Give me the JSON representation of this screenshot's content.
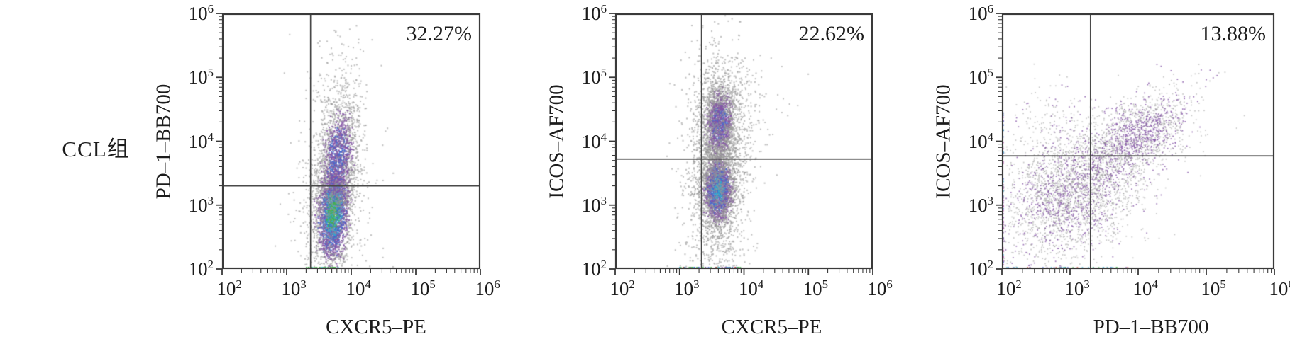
{
  "figure": {
    "row_label": "CCL组",
    "background": "#ffffff",
    "axis_color": "#3a3a3a",
    "gate_color": "#4a4a4a",
    "text_color": "#1c1c1c"
  },
  "palette": {
    "gray": "#969696",
    "purple": "#8455a6",
    "blue": "#4568cd",
    "cyan": "#35aacd",
    "green": "#46b14c",
    "magenta": "#bb50b4",
    "red": "#c03a31"
  },
  "chart_data": [
    {
      "type": "scatter",
      "kind": "flow-cytometry-dot-plot",
      "xlabel": "CXCR5–PE",
      "ylabel": "PD–1–BB700",
      "annotation": "32.27%",
      "annotation_position": "upper-right",
      "scale": "log-log",
      "xlim": [
        100,
        1000000
      ],
      "ylim": [
        100,
        1000000
      ],
      "x_tick_exponents": [
        2,
        3,
        4,
        5,
        6
      ],
      "y_tick_exponents": [
        2,
        3,
        4,
        5,
        6
      ],
      "gate": {
        "x_log10": 3.37,
        "y_log10": 3.3
      },
      "clusters": [
        {
          "n": 3000,
          "cx": 3.72,
          "cy": 2.88,
          "sx": 0.13,
          "sy": 0.4,
          "rho": 0.15,
          "stops": [
            [
              0.4,
              [
                "green",
                "green",
                "cyan"
              ]
            ],
            [
              0.75,
              [
                "cyan",
                "green",
                "blue"
              ]
            ],
            [
              1.1,
              [
                "blue",
                "cyan",
                "purple"
              ]
            ],
            [
              1.55,
              [
                "purple",
                "purple",
                "blue"
              ]
            ],
            [
              2.1,
              [
                "purple",
                "gray"
              ]
            ],
            [
              99,
              [
                "gray"
              ]
            ]
          ]
        },
        {
          "n": 1600,
          "cx": 3.8,
          "cy": 3.78,
          "sx": 0.16,
          "sy": 0.45,
          "rho": 0.25,
          "stops": [
            [
              0.5,
              [
                "blue",
                "purple"
              ]
            ],
            [
              0.95,
              [
                "purple",
                "purple",
                "blue"
              ]
            ],
            [
              1.5,
              [
                "purple",
                "gray"
              ]
            ],
            [
              99,
              [
                "gray"
              ]
            ]
          ]
        },
        {
          "n": 150,
          "cx": 3.85,
          "cy": 4.85,
          "sx": 0.22,
          "sy": 0.45,
          "rho": 0.1,
          "stops": [
            [
              99,
              [
                "gray"
              ]
            ]
          ]
        },
        {
          "n": 700,
          "cx": 3.7,
          "cy": 3.05,
          "sx": 0.28,
          "sy": 0.9,
          "rho": 0.1,
          "stops": [
            [
              99,
              [
                "gray"
              ]
            ]
          ]
        },
        {
          "edge": "bottom",
          "n": 26,
          "range": [
            3.3,
            3.8
          ],
          "colors": [
            "green",
            "green",
            "green",
            "cyan"
          ]
        }
      ]
    },
    {
      "type": "scatter",
      "kind": "flow-cytometry-dot-plot",
      "xlabel": "CXCR5–PE",
      "ylabel": "ICOS–AF700",
      "annotation": "22.62%",
      "annotation_position": "upper-right",
      "scale": "log-log",
      "xlim": [
        100,
        1000000
      ],
      "ylim": [
        100,
        1000000
      ],
      "x_tick_exponents": [
        2,
        3,
        4,
        5,
        6
      ],
      "y_tick_exponents": [
        2,
        3,
        4,
        5,
        6
      ],
      "gate": {
        "x_log10": 3.34,
        "y_log10": 3.72
      },
      "clusters": [
        {
          "n": 2400,
          "cx": 3.6,
          "cy": 3.25,
          "sx": 0.12,
          "sy": 0.28,
          "rho": 0.0,
          "stops": [
            [
              0.45,
              [
                "cyan",
                "cyan",
                "blue"
              ]
            ],
            [
              0.85,
              [
                "blue",
                "cyan",
                "purple"
              ]
            ],
            [
              1.3,
              [
                "purple",
                "blue"
              ]
            ],
            [
              1.9,
              [
                "purple",
                "gray"
              ]
            ],
            [
              99,
              [
                "gray"
              ]
            ]
          ]
        },
        {
          "n": 1900,
          "cx": 3.62,
          "cy": 4.28,
          "sx": 0.13,
          "sy": 0.32,
          "rho": 0.1,
          "stops": [
            [
              0.5,
              [
                "blue",
                "purple",
                "purple"
              ]
            ],
            [
              0.95,
              [
                "purple",
                "purple",
                "blue"
              ]
            ],
            [
              1.5,
              [
                "purple",
                "gray"
              ]
            ],
            [
              99,
              [
                "gray"
              ]
            ]
          ]
        },
        {
          "n": 2200,
          "cx": 3.6,
          "cy": 3.55,
          "sx": 0.24,
          "sy": 0.88,
          "rho": 0.05,
          "stops": [
            [
              99,
              [
                "gray"
              ]
            ]
          ]
        },
        {
          "n": 90,
          "cx": 3.7,
          "cy": 5.05,
          "sx": 0.28,
          "sy": 0.25,
          "rho": 0.0,
          "stops": [
            [
              99,
              [
                "gray"
              ]
            ]
          ]
        },
        {
          "n": 70,
          "cx": 4.15,
          "cy": 4.45,
          "sx": 0.3,
          "sy": 0.38,
          "rho": 0.3,
          "stops": [
            [
              99,
              [
                "gray"
              ]
            ]
          ]
        },
        {
          "edge": "bottom",
          "n": 42,
          "range": [
            3.0,
            3.95
          ],
          "colors": [
            "cyan",
            "green",
            "blue",
            "red",
            "green",
            "purple"
          ]
        }
      ]
    },
    {
      "type": "scatter",
      "kind": "flow-cytometry-dot-plot",
      "xlabel": "PD–1–BB700",
      "ylabel": "ICOS–AF700",
      "annotation": "13.88%",
      "annotation_position": "upper-right",
      "scale": "log-log",
      "xlim": [
        100,
        1000000
      ],
      "ylim": [
        100,
        1000000
      ],
      "x_tick_exponents": [
        2,
        3,
        4,
        5,
        6
      ],
      "y_tick_exponents": [
        2,
        3,
        4,
        5,
        6
      ],
      "gate": {
        "x_log10": 3.3,
        "y_log10": 3.77
      },
      "clusters": [
        {
          "n": 2800,
          "cx": 3.05,
          "cy": 3.2,
          "sx": 0.52,
          "sy": 0.5,
          "rho": 0.3,
          "stops": [
            [
              0.85,
              [
                "purple",
                "gray",
                "gray"
              ]
            ],
            [
              1.4,
              [
                "gray",
                "gray",
                "purple"
              ]
            ],
            [
              99,
              [
                "gray",
                "gray",
                "gray",
                "gray",
                "purple"
              ]
            ]
          ]
        },
        {
          "n": 1500,
          "cx": 4.02,
          "cy": 4.1,
          "sx": 0.4,
          "sy": 0.36,
          "rho": 0.55,
          "stops": [
            [
              0.8,
              [
                "purple",
                "gray",
                "purple"
              ]
            ],
            [
              1.4,
              [
                "gray",
                "purple",
                "gray"
              ]
            ],
            [
              99,
              [
                "gray",
                "gray",
                "purple"
              ]
            ]
          ]
        },
        {
          "n": 220,
          "cx": 2.8,
          "cy": 4.15,
          "sx": 0.45,
          "sy": 0.4,
          "rho": 0.0,
          "stops": [
            [
              99,
              [
                "gray",
                "gray",
                "gray",
                "purple"
              ]
            ]
          ]
        },
        {
          "edge": "left",
          "n": 65,
          "range": [
            2.05,
            4.45
          ],
          "colors": [
            "magenta",
            "purple",
            "purple",
            "magenta",
            "cyan",
            "blue",
            "gray"
          ]
        },
        {
          "edge": "bottom",
          "n": 40,
          "range": [
            2.05,
            3.85
          ],
          "colors": [
            "cyan",
            "blue",
            "green",
            "purple",
            "cyan",
            "red"
          ]
        }
      ]
    }
  ]
}
